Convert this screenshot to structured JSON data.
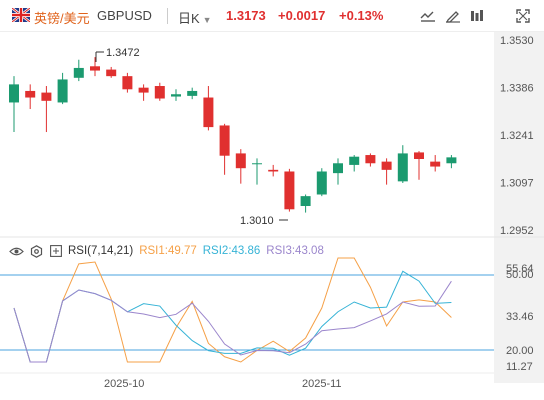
{
  "toolbar": {
    "pair_cn": "英镑/美元",
    "pair_en": "GBPUSD",
    "timeframe": "日K",
    "timeframe_caret": "▼",
    "price": "1.3173",
    "change": "+0.0017",
    "change_pct": "+0.13%",
    "icons": [
      "line-chart-icon",
      "draw-icon",
      "indicator-icon",
      "fullscreen-icon"
    ]
  },
  "colors": {
    "up": "#1b9a6f",
    "down": "#e0302f",
    "rsi1": "#f5a047",
    "rsi2": "#36b3d6",
    "rsi3": "#9b86cc",
    "level": "#4aa3df"
  },
  "price_axis": {
    "ticks": [
      "1.3530",
      "1.3386",
      "1.3241",
      "1.3097",
      "1.2952"
    ]
  },
  "annotations": {
    "high": "1.3472",
    "low": "1.3010"
  },
  "rsi": {
    "name": "RSI(7,14,21)",
    "rsi1": "RSI1:49.77",
    "rsi2": "RSI2:43.86",
    "rsi3": "RSI3:43.08",
    "ticks": [
      "55.64",
      "50.00",
      "33.46",
      "20.00",
      "11.27"
    ]
  },
  "time_axis": [
    "2025-10",
    "2025-11"
  ],
  "chart_data": {
    "type": "candlestick",
    "ylim": [
      1.2952,
      1.353
    ],
    "candles": [
      {
        "o": 1.334,
        "h": 1.342,
        "l": 1.325,
        "c": 1.3395
      },
      {
        "o": 1.3375,
        "h": 1.3395,
        "l": 1.332,
        "c": 1.3355
      },
      {
        "o": 1.337,
        "h": 1.339,
        "l": 1.325,
        "c": 1.3345
      },
      {
        "o": 1.334,
        "h": 1.343,
        "l": 1.3335,
        "c": 1.341
      },
      {
        "o": 1.3415,
        "h": 1.347,
        "l": 1.3405,
        "c": 1.3445
      },
      {
        "o": 1.345,
        "h": 1.3478,
        "l": 1.342,
        "c": 1.3437
      },
      {
        "o": 1.344,
        "h": 1.3448,
        "l": 1.3415,
        "c": 1.342
      },
      {
        "o": 1.342,
        "h": 1.343,
        "l": 1.337,
        "c": 1.338
      },
      {
        "o": 1.3385,
        "h": 1.3395,
        "l": 1.3345,
        "c": 1.337
      },
      {
        "o": 1.339,
        "h": 1.34,
        "l": 1.3345,
        "c": 1.3352
      },
      {
        "o": 1.3358,
        "h": 1.338,
        "l": 1.3345,
        "c": 1.3365
      },
      {
        "o": 1.336,
        "h": 1.3385,
        "l": 1.335,
        "c": 1.3375
      },
      {
        "o": 1.3355,
        "h": 1.339,
        "l": 1.3255,
        "c": 1.3265
      },
      {
        "o": 1.327,
        "h": 1.3275,
        "l": 1.312,
        "c": 1.3178
      },
      {
        "o": 1.3185,
        "h": 1.3198,
        "l": 1.3093,
        "c": 1.314
      },
      {
        "o": 1.3155,
        "h": 1.317,
        "l": 1.309,
        "c": 1.3155
      },
      {
        "o": 1.3135,
        "h": 1.315,
        "l": 1.3115,
        "c": 1.313
      },
      {
        "o": 1.313,
        "h": 1.3138,
        "l": 1.3008,
        "c": 1.3015
      },
      {
        "o": 1.3025,
        "h": 1.306,
        "l": 1.3005,
        "c": 1.3055
      },
      {
        "o": 1.306,
        "h": 1.314,
        "l": 1.3055,
        "c": 1.313
      },
      {
        "o": 1.3125,
        "h": 1.317,
        "l": 1.309,
        "c": 1.3155
      },
      {
        "o": 1.315,
        "h": 1.318,
        "l": 1.313,
        "c": 1.3175
      },
      {
        "o": 1.318,
        "h": 1.3185,
        "l": 1.3145,
        "c": 1.3155
      },
      {
        "o": 1.316,
        "h": 1.317,
        "l": 1.309,
        "c": 1.3135
      },
      {
        "o": 1.31,
        "h": 1.321,
        "l": 1.3095,
        "c": 1.3185
      },
      {
        "o": 1.3188,
        "h": 1.3192,
        "l": 1.3105,
        "c": 1.3168
      },
      {
        "o": 1.316,
        "h": 1.318,
        "l": 1.313,
        "c": 1.3145
      },
      {
        "o": 1.3155,
        "h": 1.318,
        "l": 1.314,
        "c": 1.3173
      }
    ]
  }
}
